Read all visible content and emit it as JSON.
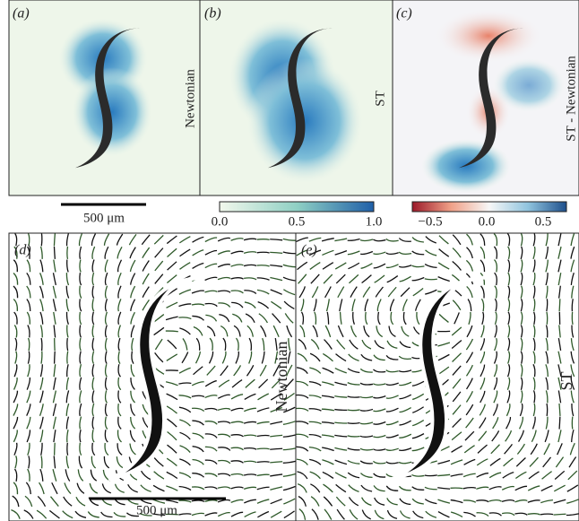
{
  "panels": [
    {
      "label": "(a)",
      "side_label": "Newtonian"
    },
    {
      "label": "(b)",
      "side_label": "ST"
    },
    {
      "label": "(c)",
      "side_label": "ST - Newtonian"
    },
    {
      "label": "(d)",
      "side_label": "Newtonian"
    },
    {
      "label": "(e)",
      "side_label": "ST"
    }
  ],
  "scale_bars": [
    "500 μm",
    "500 μm"
  ],
  "colorbars": [
    {
      "ticks": [
        "0.0",
        "0.5",
        "1.0"
      ]
    },
    {
      "ticks": [
        "−0.5",
        "0.0",
        "0.5"
      ]
    }
  ]
}
